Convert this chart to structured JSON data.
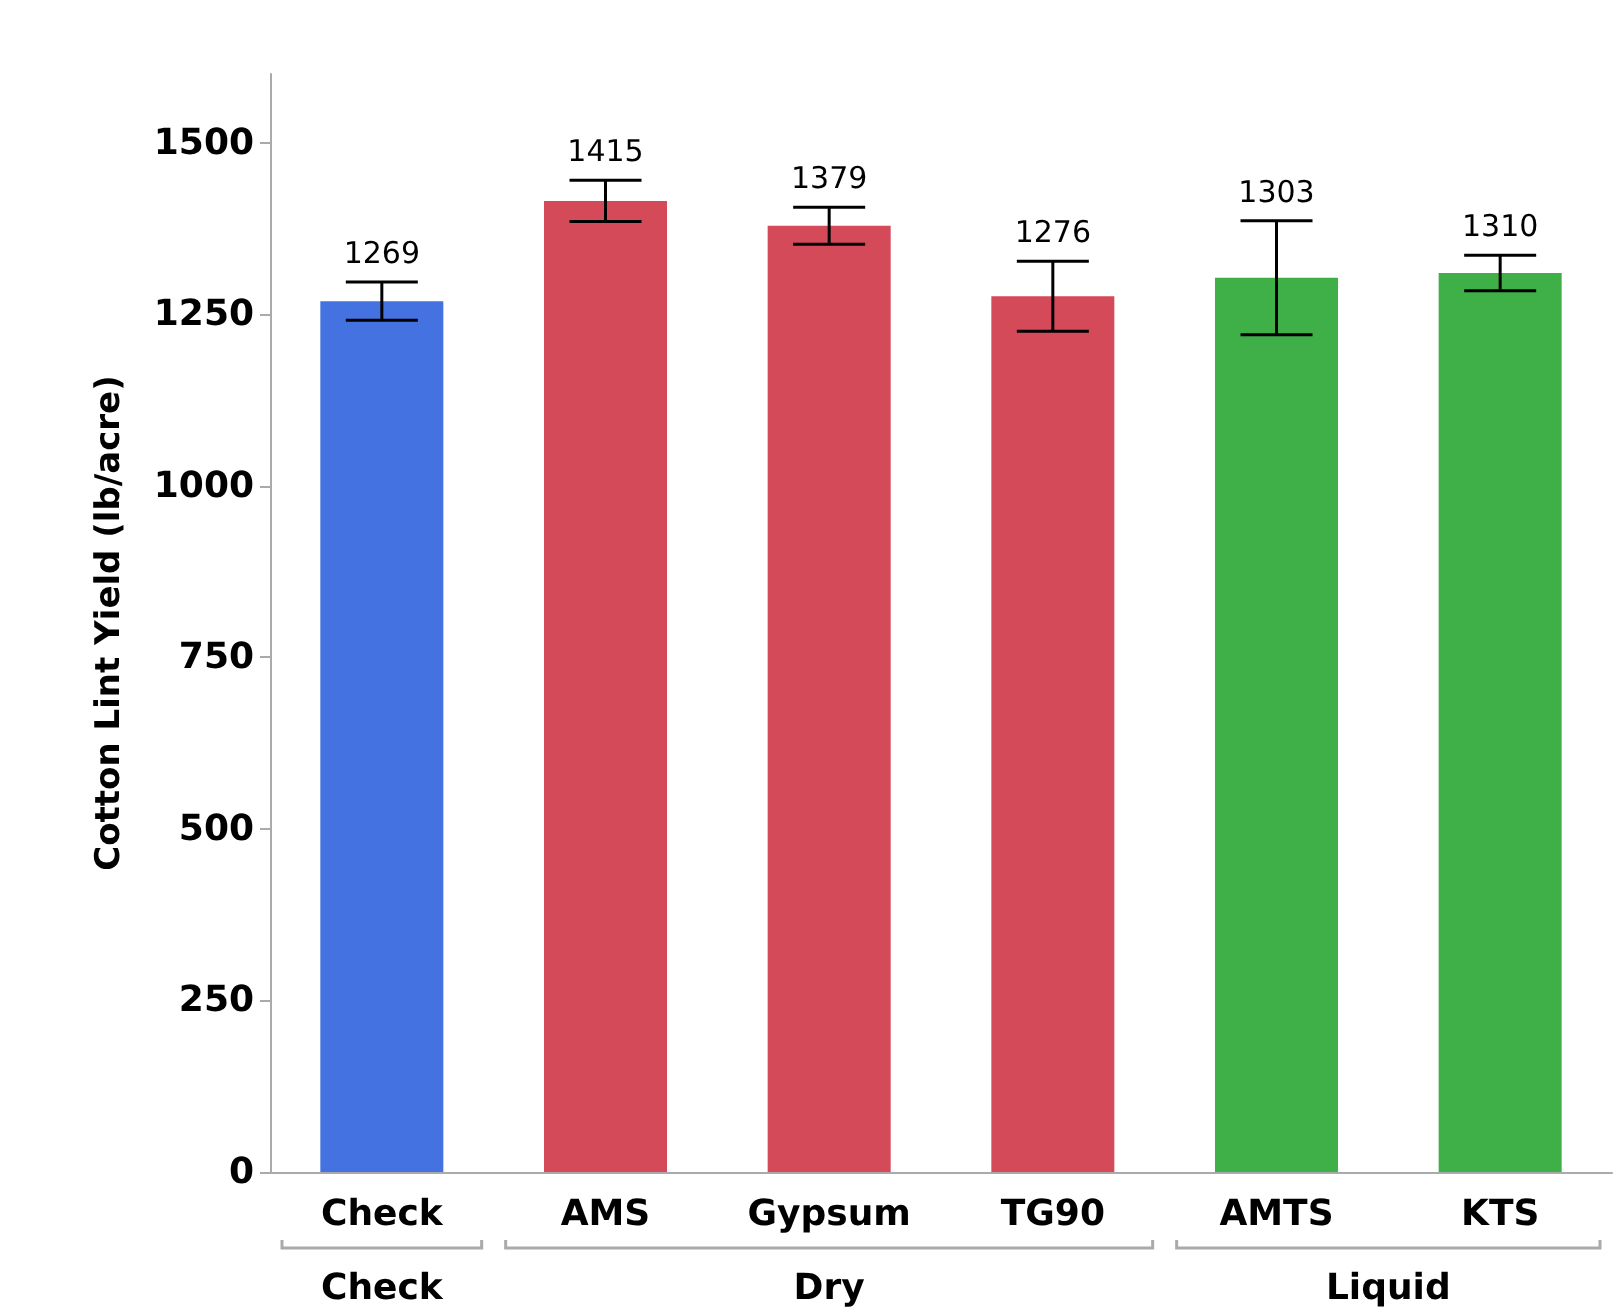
{
  "chart_data": {
    "type": "bar",
    "ylabel": "Cotton Lint Yield (lb/acre)",
    "categories": [
      "Check",
      "AMS",
      "Gypsum",
      "TG90",
      "AMTS",
      "KTS"
    ],
    "values": [
      1269,
      1415,
      1379,
      1276,
      1303,
      1310
    ],
    "colors": [
      "#4472e0",
      "#d44a58",
      "#d44a58",
      "#d44a58",
      "#3faf48",
      "#3faf48"
    ],
    "errors": [
      28,
      30,
      27,
      51,
      83,
      26
    ],
    "data_labels": true,
    "annotations": [
      "Check",
      "Dry",
      "Liquid"
    ],
    "ylim": [
      0,
      1600
    ],
    "yticks": [
      0,
      250,
      500,
      750,
      1000,
      1250,
      1500
    ]
  }
}
